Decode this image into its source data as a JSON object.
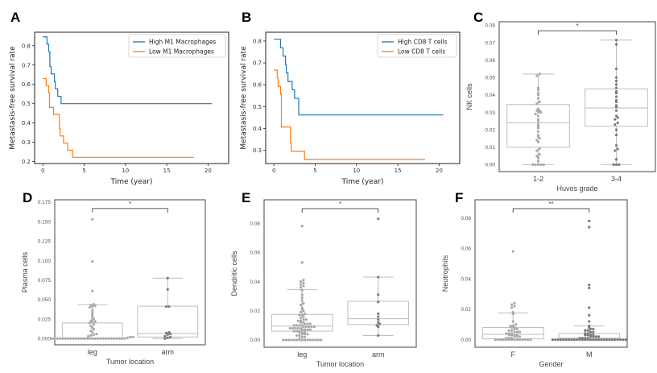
{
  "colors": {
    "high": "#1f77b4",
    "low": "#ff7f0e",
    "group1_points": "#a9a9a9",
    "group2_points": "#7a7a7a",
    "box_edge": "#bdbdbd",
    "frame": "#333333"
  },
  "chart_data": [
    {
      "panel": "A",
      "type": "line",
      "step": true,
      "title": "",
      "xlabel": "Time (year)",
      "ylabel": "Metastasis-free survival rate",
      "xlim": [
        -1,
        22.5
      ],
      "ylim": [
        0.19,
        0.87
      ],
      "xticks": [
        0,
        5,
        10,
        15,
        20
      ],
      "yticks": [
        0.2,
        0.3,
        0.4,
        0.5,
        0.6,
        0.7,
        0.8
      ],
      "legend_position": "top-right",
      "series": [
        {
          "name": "High M1 Macrophages",
          "color_key": "high",
          "x": [
            0,
            0.5,
            0.7,
            0.85,
            1.0,
            1.4,
            1.5,
            1.8,
            2.2,
            20.5
          ],
          "y": [
            0.846,
            0.808,
            0.769,
            0.692,
            0.654,
            0.615,
            0.577,
            0.538,
            0.5,
            0.5
          ]
        },
        {
          "name": "Low M1 Macrophages",
          "color_key": "low",
          "x": [
            0,
            0.4,
            0.7,
            0.8,
            1.3,
            2.0,
            2.1,
            2.5,
            3.0,
            3.6,
            18.3
          ],
          "y": [
            0.63,
            0.593,
            0.556,
            0.481,
            0.444,
            0.37,
            0.333,
            0.296,
            0.259,
            0.222,
            0.222
          ]
        }
      ]
    },
    {
      "panel": "B",
      "type": "line",
      "step": true,
      "title": "",
      "xlabel": "Time (year)",
      "ylabel": "Metastasis-free survival rate",
      "xlim": [
        -1,
        22.5
      ],
      "ylim": [
        0.24,
        0.84
      ],
      "xticks": [
        0,
        5,
        10,
        15,
        20
      ],
      "yticks": [
        0.3,
        0.4,
        0.5,
        0.6,
        0.7,
        0.8
      ],
      "legend_position": "top-right",
      "series": [
        {
          "name": "High CD8 T cells",
          "color_key": "high",
          "x": [
            0,
            0.8,
            1.1,
            1.4,
            1.5,
            1.7,
            2.2,
            2.5,
            3.0,
            20.5
          ],
          "y": [
            0.808,
            0.769,
            0.731,
            0.692,
            0.654,
            0.615,
            0.577,
            0.538,
            0.462,
            0.462
          ]
        },
        {
          "name": "Low CD8 T cells",
          "color_key": "low",
          "x": [
            0,
            0.4,
            0.5,
            0.8,
            0.9,
            2.0,
            2.1,
            3.7,
            18.3
          ],
          "y": [
            0.667,
            0.63,
            0.593,
            0.556,
            0.407,
            0.333,
            0.296,
            0.259,
            0.259
          ]
        }
      ]
    },
    {
      "panel": "C",
      "type": "box",
      "xlabel": "Huvos grade",
      "ylabel": "NK cells",
      "ylim": [
        -0.004,
        0.082
      ],
      "yticks": [
        0.0,
        0.01,
        0.02,
        0.03,
        0.04,
        0.05,
        0.06,
        0.07,
        0.08
      ],
      "ytick_format": 2,
      "categories": [
        "1-2",
        "3-4"
      ],
      "significance": "*",
      "boxes": [
        {
          "q1": 0.01,
          "median": 0.024,
          "q3": 0.0345,
          "whisker_low": 0.0,
          "whisker_high": 0.052,
          "point_color_key": "group1_points",
          "points": [
            0,
            0,
            0,
            0,
            0,
            0.002,
            0.004,
            0.005,
            0.006,
            0.008,
            0.009,
            0.013,
            0.014,
            0.015,
            0.016,
            0.017,
            0.019,
            0.021,
            0.022,
            0.023,
            0.025,
            0.026,
            0.028,
            0.029,
            0.03,
            0.03,
            0.031,
            0.031,
            0.032,
            0.035,
            0.036,
            0.038,
            0.04,
            0.041,
            0.043,
            0.044,
            0.051,
            0.052
          ]
        },
        {
          "q1": 0.022,
          "median": 0.0325,
          "q3": 0.0435,
          "whisker_low": 0.0,
          "whisker_high": 0.0715,
          "point_color_key": "group2_points",
          "points": [
            0,
            0,
            0,
            0.003,
            0.008,
            0.009,
            0.011,
            0.017,
            0.02,
            0.023,
            0.024,
            0.026,
            0.027,
            0.028,
            0.031,
            0.033,
            0.034,
            0.036,
            0.037,
            0.039,
            0.041,
            0.042,
            0.044,
            0.046,
            0.048,
            0.05,
            0.055,
            0.069,
            0.0715
          ]
        }
      ]
    },
    {
      "panel": "D",
      "type": "box",
      "xlabel": "Tumor location",
      "ylabel": "Plasma cells",
      "ylim": [
        -0.008,
        0.178
      ],
      "yticks": [
        0.0,
        0.025,
        0.05,
        0.075,
        0.1,
        0.125,
        0.15,
        0.175
      ],
      "ytick_format": 3,
      "categories": [
        "leg",
        "arm"
      ],
      "significance": "*",
      "boxes": [
        {
          "q1": 0.0,
          "median": 0.0,
          "q3": 0.02,
          "whisker_low": 0.0,
          "whisker_high": 0.0435,
          "point_color_key": "group1_points",
          "points": [
            0,
            0,
            0,
            0,
            0,
            0,
            0,
            0,
            0,
            0,
            0,
            0,
            0,
            0,
            0,
            0,
            0,
            0,
            0,
            0,
            0,
            0,
            0,
            0,
            0,
            0,
            0,
            0,
            0.001,
            0.002,
            0.002,
            0.003,
            0.004,
            0.005,
            0.006,
            0.008,
            0.01,
            0.012,
            0.014,
            0.016,
            0.018,
            0.02,
            0.021,
            0.022,
            0.023,
            0.025,
            0.027,
            0.03,
            0.033,
            0.036,
            0.04,
            0.041,
            0.042,
            0.043,
            0.044,
            0.061,
            0.099,
            0.153
          ]
        },
        {
          "q1": 0.002,
          "median": 0.0065,
          "q3": 0.0415,
          "whisker_low": 0.0,
          "whisker_high": 0.0775,
          "point_color_key": "group2_points",
          "points": [
            0.0,
            0.001,
            0.002,
            0.003,
            0.005,
            0.006,
            0.007,
            0.008,
            0.041,
            0.041,
            0.063,
            0.0775
          ]
        }
      ]
    },
    {
      "panel": "E",
      "type": "box",
      "xlabel": "Tumor location",
      "ylabel": "Dendritic cells",
      "ylim": [
        -0.005,
        0.096
      ],
      "yticks": [
        0.0,
        0.02,
        0.04,
        0.06,
        0.08
      ],
      "ytick_format": 2,
      "categories": [
        "leg",
        "arm"
      ],
      "significance": "*",
      "boxes": [
        {
          "q1": 0.006,
          "median": 0.0095,
          "q3": 0.0175,
          "whisker_low": 0.0,
          "whisker_high": 0.0345,
          "point_color_key": "group1_points",
          "points": [
            0,
            0,
            0,
            0,
            0,
            0,
            0,
            0,
            0,
            0,
            0,
            0,
            0,
            0,
            0,
            0.001,
            0.002,
            0.002,
            0.003,
            0.003,
            0.004,
            0.004,
            0.004,
            0.005,
            0.005,
            0.005,
            0.006,
            0.006,
            0.006,
            0.007,
            0.007,
            0.007,
            0.007,
            0.008,
            0.008,
            0.008,
            0.008,
            0.008,
            0.009,
            0.009,
            0.009,
            0.009,
            0.009,
            0.01,
            0.01,
            0.01,
            0.01,
            0.011,
            0.011,
            0.011,
            0.012,
            0.012,
            0.013,
            0.013,
            0.014,
            0.014,
            0.015,
            0.016,
            0.017,
            0.017,
            0.018,
            0.019,
            0.02,
            0.021,
            0.022,
            0.024,
            0.025,
            0.027,
            0.029,
            0.031,
            0.034,
            0.036,
            0.037,
            0.038,
            0.039,
            0.04,
            0.041,
            0.053,
            0.078
          ]
        },
        {
          "q1": 0.0105,
          "median": 0.0145,
          "q3": 0.0265,
          "whisker_low": 0.003,
          "whisker_high": 0.043,
          "point_color_key": "group2_points",
          "points": [
            0.003,
            0.009,
            0.01,
            0.011,
            0.012,
            0.014,
            0.016,
            0.018,
            0.026,
            0.031,
            0.043,
            0.083
          ]
        }
      ]
    },
    {
      "panel": "F",
      "type": "box",
      "xlabel": "Gender",
      "ylabel": "Neutrophils",
      "ylim": [
        -0.005,
        0.092
      ],
      "yticks": [
        0.0,
        0.02,
        0.04,
        0.06,
        0.08
      ],
      "ytick_format": 2,
      "categories": [
        "F",
        "M"
      ],
      "significance": "**",
      "boxes": [
        {
          "q1": 0.0005,
          "median": 0.0035,
          "q3": 0.008,
          "whisker_low": 0.0,
          "whisker_high": 0.0175,
          "point_color_key": "group1_points",
          "points": [
            0,
            0,
            0,
            0,
            0,
            0,
            0,
            0,
            0,
            0,
            0,
            0,
            0,
            0,
            0.001,
            0.001,
            0.001,
            0.002,
            0.002,
            0.002,
            0.003,
            0.003,
            0.003,
            0.003,
            0.004,
            0.004,
            0.004,
            0.005,
            0.005,
            0.005,
            0.006,
            0.006,
            0.007,
            0.007,
            0.008,
            0.008,
            0.009,
            0.009,
            0.01,
            0.012,
            0.017,
            0.018,
            0.021,
            0.022,
            0.023,
            0.024,
            0.058
          ]
        },
        {
          "q1": 0.0,
          "median": 0.001,
          "q3": 0.004,
          "whisker_low": 0.0,
          "whisker_high": 0.009,
          "point_color_key": "group2_points",
          "points": [
            0,
            0,
            0,
            0,
            0,
            0,
            0,
            0,
            0,
            0,
            0,
            0,
            0,
            0,
            0,
            0,
            0,
            0,
            0,
            0,
            0,
            0,
            0,
            0,
            0,
            0,
            0,
            0,
            0.001,
            0.001,
            0.001,
            0.001,
            0.002,
            0.002,
            0.002,
            0.002,
            0.003,
            0.003,
            0.003,
            0.003,
            0.004,
            0.004,
            0.005,
            0.005,
            0.006,
            0.006,
            0.007,
            0.007,
            0.008,
            0.009,
            0.012,
            0.016,
            0.021,
            0.034,
            0.036,
            0.074,
            0.078
          ]
        }
      ]
    }
  ]
}
